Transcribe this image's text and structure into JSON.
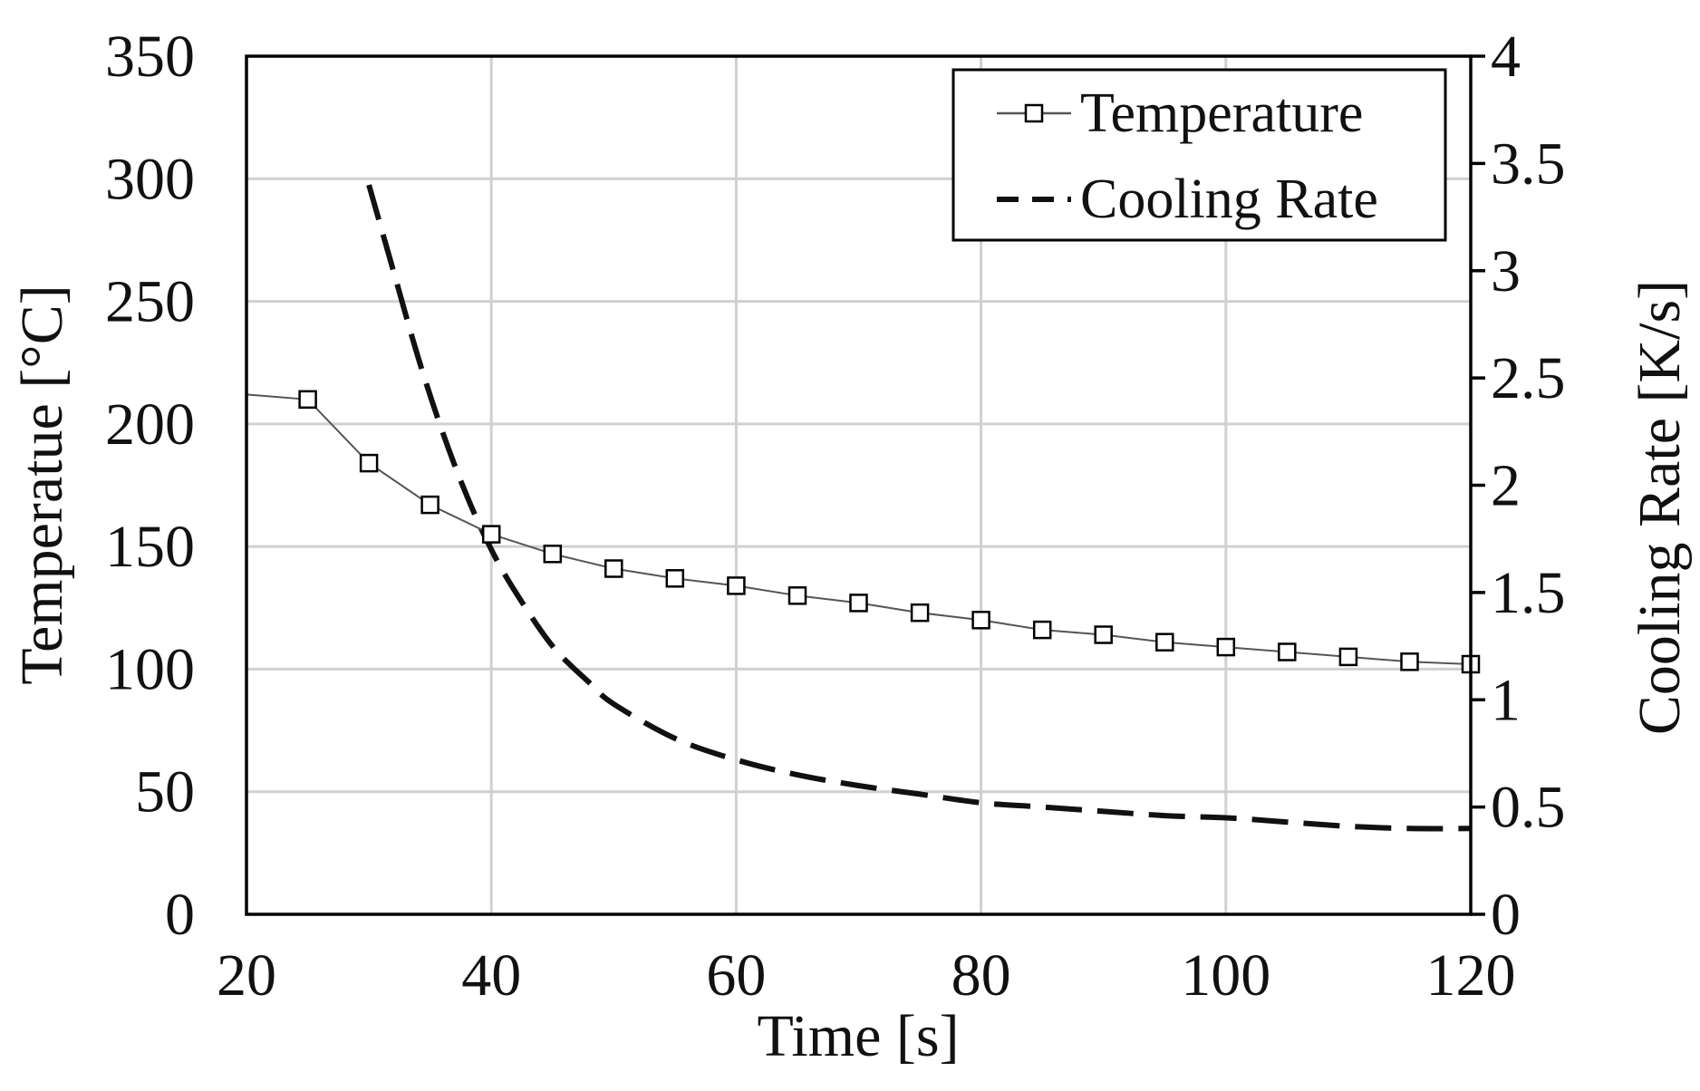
{
  "chart_data": {
    "type": "line",
    "xlabel": "Time [s]",
    "ylabel": "Temperatue [°C]",
    "y2label": "Cooling Rate [K/s]",
    "xlim": [
      20,
      120
    ],
    "ylim": [
      0,
      350
    ],
    "y2lim": [
      0,
      4
    ],
    "x_ticks": [
      "20",
      "40",
      "60",
      "80",
      "100",
      "120"
    ],
    "y_ticks": [
      "0",
      "50",
      "100",
      "150",
      "200",
      "250",
      "300",
      "350"
    ],
    "y2_ticks": [
      "0",
      "0.5",
      "1",
      "1.5",
      "2",
      "2.5",
      "3",
      "3.5",
      "4"
    ],
    "grid": true,
    "legend_position": "top-right",
    "series": [
      {
        "name": "Temperature",
        "axis": "left",
        "style": "solid-square-markers",
        "line_start": {
          "x": 20,
          "y": 212
        },
        "x": [
          25,
          30,
          35,
          40,
          45,
          50,
          55,
          60,
          65,
          70,
          75,
          80,
          85,
          90,
          95,
          100,
          105,
          110,
          115,
          120
        ],
        "values": [
          210,
          184,
          167,
          155,
          147,
          141,
          137,
          134,
          130,
          127,
          123,
          120,
          116,
          114,
          111,
          109,
          107,
          105,
          103,
          102
        ]
      },
      {
        "name": "Cooling Rate",
        "axis": "right",
        "style": "dashed",
        "x": [
          30,
          32,
          34,
          36,
          38,
          40,
          42,
          45,
          48,
          50,
          55,
          60,
          65,
          70,
          75,
          80,
          85,
          90,
          95,
          100,
          105,
          110,
          115,
          120
        ],
        "values": [
          3.4,
          3.0,
          2.6,
          2.25,
          1.95,
          1.7,
          1.5,
          1.25,
          1.08,
          0.98,
          0.82,
          0.72,
          0.65,
          0.6,
          0.56,
          0.52,
          0.5,
          0.48,
          0.46,
          0.45,
          0.43,
          0.41,
          0.4,
          0.4
        ]
      }
    ]
  }
}
